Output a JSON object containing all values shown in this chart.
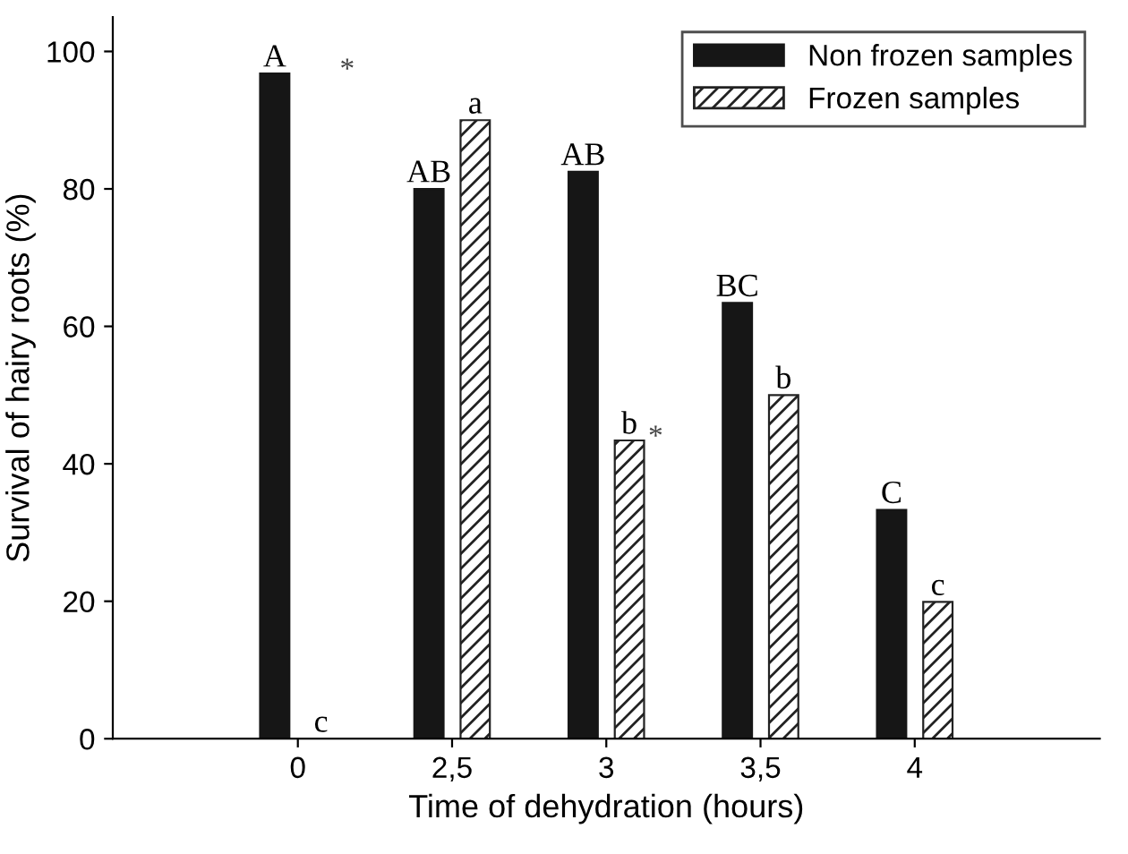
{
  "chart_data": {
    "type": "bar",
    "xlabel": "Time of dehydration (hours)",
    "ylabel": "Survival of hairy roots (%)",
    "categories": [
      "0",
      "2,5",
      "3",
      "3,5",
      "4"
    ],
    "series": [
      {
        "name": "Non frozen samples",
        "color": "#161616",
        "values": [
          96.8,
          80,
          82.5,
          63.4,
          33.3
        ],
        "value_labels": [
          "A",
          "AB",
          "AB",
          "BC",
          "C"
        ]
      },
      {
        "name": "Frozen samples",
        "color": "#222222",
        "values": [
          0,
          90,
          43.4,
          50,
          19.9
        ],
        "value_labels": [
          "c",
          "a",
          "b",
          "b",
          "c"
        ]
      }
    ],
    "annotations": [
      {
        "text": "*",
        "x": "0",
        "y": 96.8
      },
      {
        "text": "*",
        "x": "3",
        "y": 43.4
      }
    ],
    "ylim": [
      0,
      105
    ],
    "yticks": [
      0,
      20,
      40,
      60,
      80,
      100
    ],
    "grid": false,
    "legend": "top right"
  }
}
